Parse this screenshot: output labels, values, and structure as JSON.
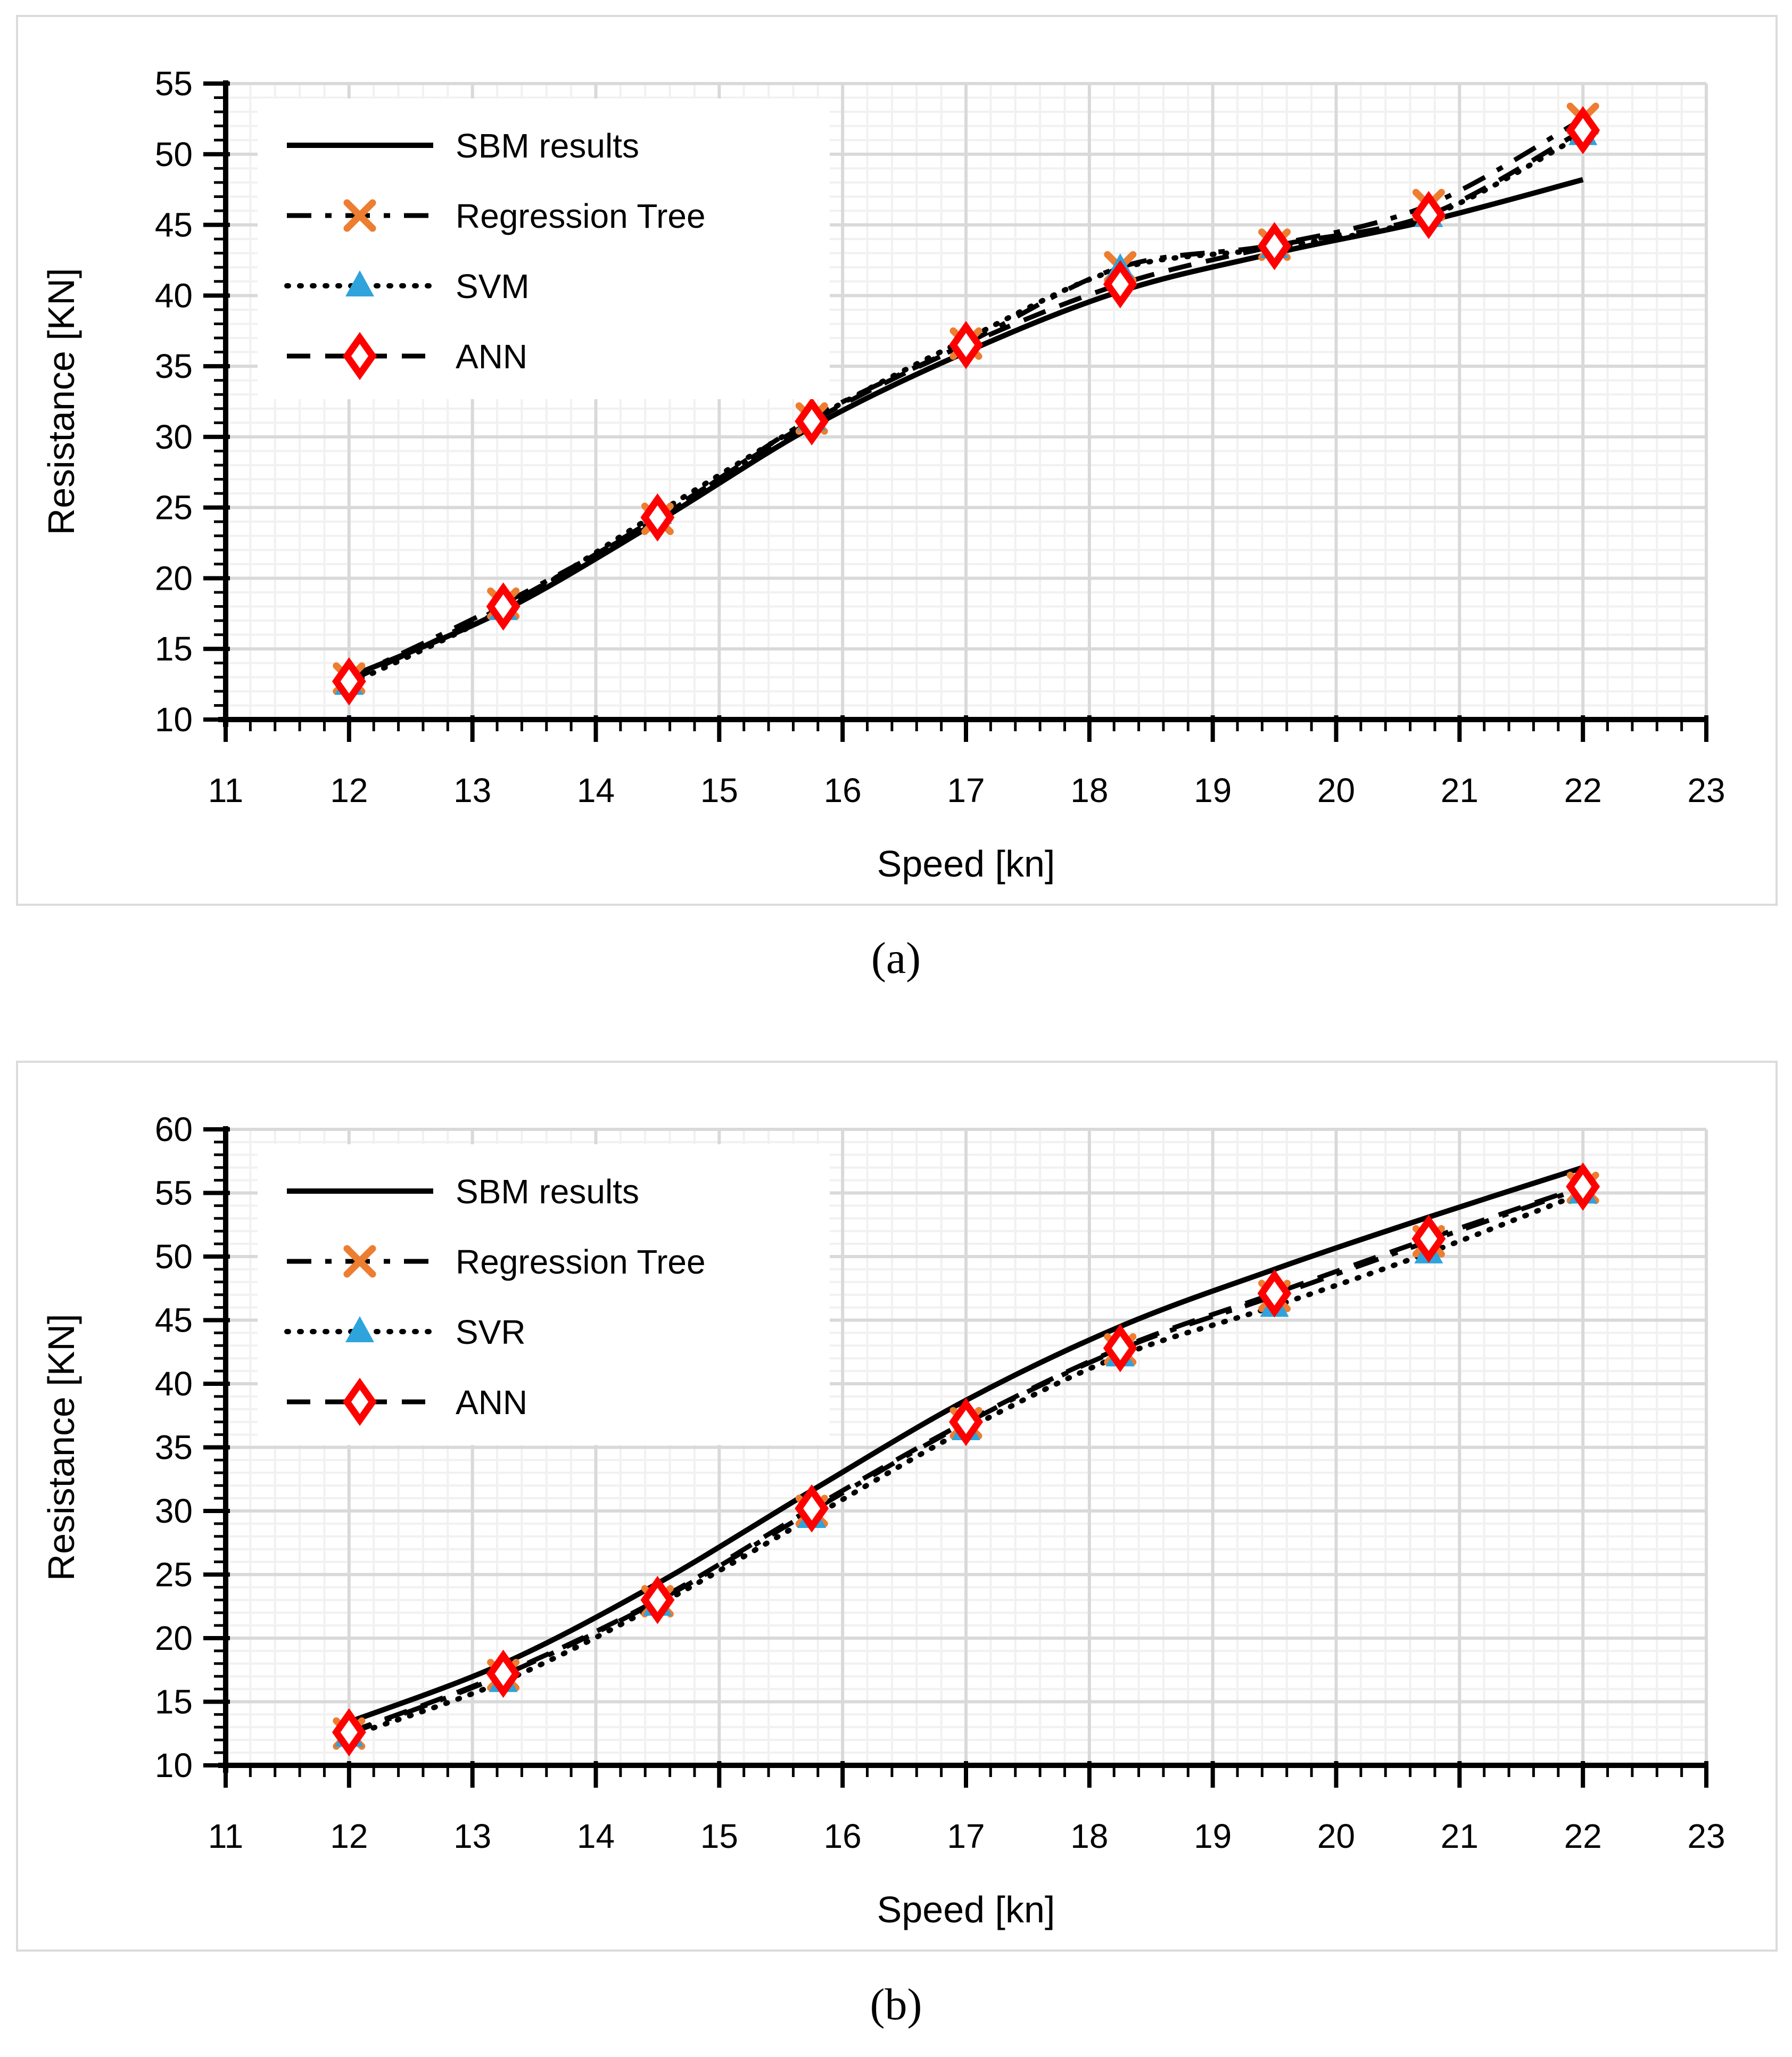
{
  "captions": {
    "a": "(a)",
    "b": "(b)"
  },
  "chart_data": [
    {
      "id": "a",
      "type": "line",
      "title": "",
      "xlabel": "Speed [kn]",
      "ylabel": "Resistance [KN]",
      "xlim": [
        11,
        23
      ],
      "ylim": [
        10,
        55
      ],
      "x_major": 1,
      "x_minor": 0.2,
      "y_major": 5,
      "y_minor": 1,
      "x_ticks": [
        11,
        12,
        13,
        14,
        15,
        16,
        17,
        18,
        19,
        20,
        21,
        22,
        23
      ],
      "y_ticks": [
        10,
        15,
        20,
        25,
        30,
        35,
        40,
        45,
        50,
        55
      ],
      "grid": true,
      "legend_position": "top-left",
      "x": [
        12,
        13.25,
        14.5,
        15.75,
        17,
        18.25,
        19.5,
        20.75,
        22
      ],
      "series": [
        {
          "name": "SBM results",
          "line": "solid",
          "marker": "none",
          "color": "#000000",
          "marker_color": "#000000",
          "values": [
            13.0,
            17.7,
            24.0,
            30.7,
            36.0,
            40.3,
            43.0,
            45.3,
            48.2
          ]
        },
        {
          "name": "Regression Tree",
          "line": "dashdot",
          "marker": "x",
          "color": "#000000",
          "marker_color": "#ED7D31",
          "values": [
            12.9,
            18.2,
            24.2,
            31.3,
            36.6,
            42.0,
            43.6,
            46.4,
            52.5
          ]
        },
        {
          "name": "SVM",
          "line": "dotted",
          "marker": "triangle",
          "color": "#000000",
          "marker_color": "#2EA3DC",
          "values": [
            12.5,
            17.8,
            24.6,
            31.2,
            36.9,
            41.9,
            43.4,
            45.6,
            51.4
          ]
        },
        {
          "name": "ANN",
          "line": "dashed",
          "marker": "diamond",
          "color": "#000000",
          "marker_color": "#FF0000",
          "values": [
            12.7,
            18.0,
            24.3,
            31.1,
            36.5,
            40.8,
            43.5,
            45.7,
            51.7
          ]
        }
      ],
      "colors": {
        "grid_minor": "#F1F1F1",
        "grid_major": "#D9D9D9",
        "axis": "#000000",
        "legend_bg": "#FFFFFF"
      }
    },
    {
      "id": "b",
      "type": "line",
      "title": "",
      "xlabel": "Speed [kn]",
      "ylabel": "Resistance [KN]",
      "xlim": [
        11,
        23
      ],
      "ylim": [
        10,
        60
      ],
      "x_major": 1,
      "x_minor": 0.2,
      "y_major": 5,
      "y_minor": 1,
      "x_ticks": [
        11,
        12,
        13,
        14,
        15,
        16,
        17,
        18,
        19,
        20,
        21,
        22,
        23
      ],
      "y_ticks": [
        10,
        15,
        20,
        25,
        30,
        35,
        40,
        45,
        50,
        55,
        60
      ],
      "grid": true,
      "legend_position": "top-left",
      "x": [
        12,
        13.25,
        14.5,
        15.75,
        17,
        18.25,
        19.5,
        20.75,
        22
      ],
      "series": [
        {
          "name": "SBM results",
          "line": "solid",
          "marker": "none",
          "color": "#000000",
          "marker_color": "#000000",
          "values": [
            13.4,
            18.0,
            24.3,
            31.6,
            38.7,
            44.5,
            49.0,
            53.1,
            57.0
          ]
        },
        {
          "name": "Regression Tree",
          "line": "dashdot",
          "marker": "x",
          "color": "#000000",
          "marker_color": "#ED7D31",
          "values": [
            12.5,
            17.1,
            22.9,
            30.0,
            36.9,
            42.7,
            46.9,
            51.2,
            55.4
          ]
        },
        {
          "name": "SVR",
          "line": "dotted",
          "marker": "triangle",
          "color": "#000000",
          "marker_color": "#2EA3DC",
          "values": [
            12.3,
            16.6,
            22.6,
            29.5,
            36.4,
            42.2,
            46.1,
            50.3,
            55.0
          ]
        },
        {
          "name": "ANN",
          "line": "dashed",
          "marker": "diamond",
          "color": "#000000",
          "marker_color": "#FF0000",
          "values": [
            12.6,
            17.2,
            23.0,
            30.2,
            37.0,
            42.8,
            47.1,
            51.4,
            55.5
          ]
        }
      ],
      "colors": {
        "grid_minor": "#F1F1F1",
        "grid_major": "#D9D9D9",
        "axis": "#000000",
        "legend_bg": "#FFFFFF"
      }
    }
  ]
}
